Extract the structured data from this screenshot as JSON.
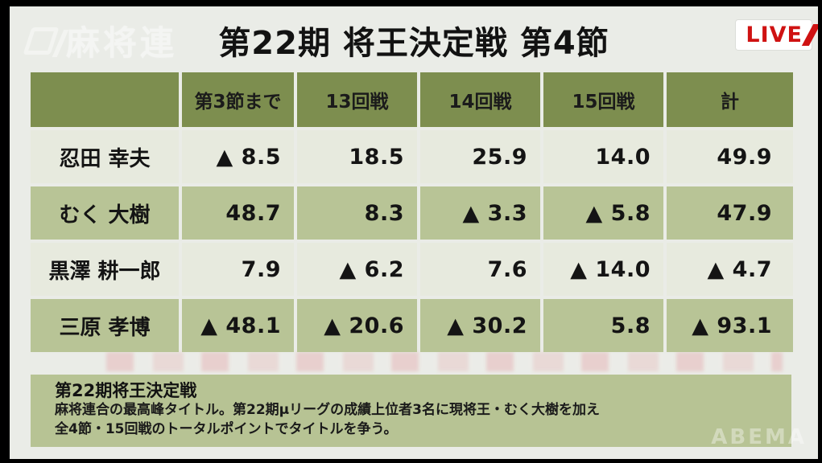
{
  "header": {
    "title": "第22期 将王決定戦 第4節",
    "federation_watermark": "麻将連",
    "live_badge": "LIVE"
  },
  "table": {
    "columns": [
      "",
      "第3節まで",
      "13回戦",
      "14回戦",
      "15回戦",
      "計"
    ],
    "rows": [
      {
        "name": "忍田 幸夫",
        "values": [
          "▲ 8.5",
          "18.5",
          "25.9",
          "14.0",
          "49.9"
        ]
      },
      {
        "name": "むく 大樹",
        "values": [
          "48.7",
          "8.3",
          "▲ 3.3",
          "▲ 5.8",
          "47.9"
        ]
      },
      {
        "name": "黒澤 耕一郎",
        "values": [
          "7.9",
          "▲ 6.2",
          "7.6",
          "▲ 14.0",
          "▲ 4.7"
        ]
      },
      {
        "name": "三原 孝博",
        "values": [
          "▲ 48.1",
          "▲ 20.6",
          "▲ 30.2",
          "5.8",
          "▲ 93.1"
        ]
      }
    ]
  },
  "info_panel": {
    "title": "第22期将王決定戦",
    "body_line1": "麻将連合の最高峰タイトル。第22期μリーグの成績上位者3名に現将王・むく大樹を加え",
    "body_line2": "全4節・15回戦のトータルポイントでタイトルを争う。"
  },
  "watermarks": {
    "abema": "ABEMA"
  },
  "colors": {
    "header_green": "#7d8e4f",
    "row_light": "#e7eade",
    "row_dark": "#b8c496",
    "panel_green": "#b7c394",
    "background": "#eaece7",
    "live_red": "#cf1212",
    "text": "#121212"
  },
  "chart_data": {
    "type": "table",
    "title": "第22期 将王決定戦 第4節",
    "columns": [
      "第3節まで",
      "13回戦",
      "14回戦",
      "15回戦",
      "計"
    ],
    "rows": [
      {
        "player": "忍田 幸夫",
        "values": [
          -8.5,
          18.5,
          25.9,
          14.0,
          49.9
        ]
      },
      {
        "player": "むく 大樹",
        "values": [
          48.7,
          8.3,
          -3.3,
          -5.8,
          47.9
        ]
      },
      {
        "player": "黒澤 耕一郎",
        "values": [
          7.9,
          -6.2,
          7.6,
          -14.0,
          -4.7
        ]
      },
      {
        "player": "三原 孝博",
        "values": [
          -48.1,
          -20.6,
          -30.2,
          5.8,
          -93.1
        ]
      }
    ],
    "note": "▲ prefix denotes negative points"
  }
}
